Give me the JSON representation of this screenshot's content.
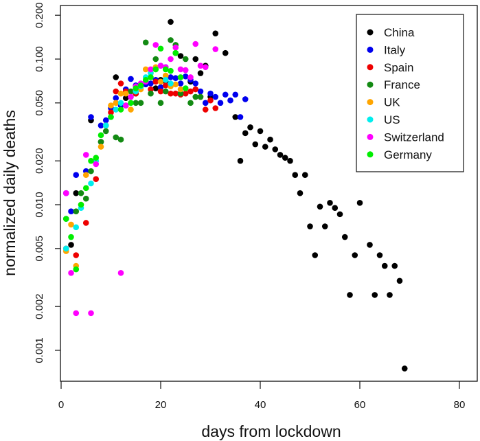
{
  "chart_data": {
    "type": "scatter",
    "title": "",
    "xlabel": "days from lockdown",
    "ylabel": "normalized daily deaths",
    "xlim": [
      -2,
      85
    ],
    "ylim": [
      0.0006,
      0.22
    ],
    "yscale": "log",
    "grid": false,
    "legend_position": "top-right",
    "x_ticks": [
      {
        "value": 0,
        "label": "0"
      },
      {
        "value": 20,
        "label": "20"
      },
      {
        "value": 40,
        "label": "40"
      },
      {
        "value": 60,
        "label": "60"
      },
      {
        "value": 80,
        "label": "80"
      }
    ],
    "y_ticks": [
      {
        "value": 0.001,
        "label": "0.001"
      },
      {
        "value": 0.002,
        "label": "0.002"
      },
      {
        "value": 0.005,
        "label": "0.005"
      },
      {
        "value": 0.01,
        "label": "0.010"
      },
      {
        "value": 0.02,
        "label": "0.020"
      },
      {
        "value": 0.05,
        "label": "0.050"
      },
      {
        "value": 0.1,
        "label": "0.100"
      },
      {
        "value": 0.2,
        "label": "0.200"
      }
    ],
    "series": [
      {
        "name": "China",
        "color": "#000000",
        "x": [
          2,
          3,
          6,
          8,
          11,
          13,
          15,
          17,
          19,
          20,
          21,
          22,
          23,
          24,
          26,
          27,
          28,
          29,
          30,
          31,
          33,
          35,
          36,
          37,
          38,
          39,
          40,
          41,
          42,
          43,
          44,
          45,
          46,
          47,
          48,
          49,
          50,
          51,
          52,
          53,
          54,
          55,
          56,
          57,
          58,
          59,
          60,
          62,
          63,
          64,
          65,
          66,
          67,
          68,
          69
        ],
        "y": [
          0.0053,
          0.012,
          0.038,
          0.027,
          0.075,
          0.054,
          0.058,
          0.069,
          0.063,
          0.072,
          0.07,
          0.18,
          0.11,
          0.105,
          0.07,
          0.1,
          0.08,
          0.09,
          0.055,
          0.15,
          0.11,
          0.04,
          0.02,
          0.031,
          0.034,
          0.026,
          0.032,
          0.025,
          0.028,
          0.024,
          0.022,
          0.021,
          0.02,
          0.016,
          0.012,
          0.016,
          0.0071,
          0.0045,
          0.0097,
          0.0071,
          0.0103,
          0.0095,
          0.0086,
          0.006,
          0.0024,
          0.0045,
          0.0103,
          0.0053,
          0.0024,
          0.0045,
          0.0038,
          0.0024,
          0.0038,
          0.003,
          0.00075
        ]
      },
      {
        "name": "Italy",
        "color": "#0000ee",
        "x": [
          1,
          2,
          3,
          5,
          6,
          8,
          9,
          10,
          11,
          12,
          13,
          14,
          15,
          16,
          17,
          18,
          19,
          20,
          21,
          22,
          23,
          24,
          25,
          26,
          27,
          28,
          29,
          30,
          31,
          32,
          33,
          34,
          35,
          36,
          37
        ],
        "y": [
          0.012,
          0.009,
          0.016,
          0.017,
          0.04,
          0.035,
          0.038,
          0.046,
          0.054,
          0.048,
          0.062,
          0.073,
          0.066,
          0.065,
          0.067,
          0.068,
          0.072,
          0.064,
          0.088,
          0.075,
          0.074,
          0.068,
          0.076,
          0.072,
          0.068,
          0.06,
          0.05,
          0.058,
          0.055,
          0.05,
          0.057,
          0.052,
          0.057,
          0.04,
          0.053
        ]
      },
      {
        "name": "Spain",
        "color": "#ee0000",
        "x": [
          1,
          3,
          5,
          7,
          9,
          10,
          11,
          12,
          13,
          15,
          16,
          17,
          18,
          19,
          20,
          21,
          22,
          23,
          24,
          25,
          26,
          27,
          28,
          29,
          30,
          31
        ],
        "y": [
          0.005,
          0.0045,
          0.0075,
          0.015,
          0.035,
          0.043,
          0.06,
          0.068,
          0.06,
          0.058,
          0.065,
          0.07,
          0.062,
          0.07,
          0.06,
          0.066,
          0.058,
          0.058,
          0.057,
          0.058,
          0.06,
          0.062,
          0.055,
          0.045,
          0.052,
          0.046
        ]
      },
      {
        "name": "France",
        "color": "#138a13",
        "x": [
          1,
          3,
          4,
          5,
          6,
          8,
          9,
          11,
          12,
          13,
          14,
          15,
          16,
          17,
          18,
          19,
          20,
          21,
          22,
          23,
          24,
          25,
          26,
          27,
          28
        ],
        "y": [
          0.008,
          0.009,
          0.012,
          0.011,
          0.017,
          0.027,
          0.032,
          0.029,
          0.028,
          0.048,
          0.06,
          0.05,
          0.05,
          0.13,
          0.058,
          0.1,
          0.05,
          0.06,
          0.135,
          0.125,
          0.058,
          0.1,
          0.05,
          0.055,
          0.055
        ]
      },
      {
        "name": "UK",
        "color": "#ffa500",
        "x": [
          1,
          2,
          3,
          4,
          5,
          7,
          8,
          9,
          10,
          11,
          12,
          13,
          14,
          15,
          16,
          17,
          18,
          19,
          20,
          21,
          22,
          23,
          24
        ],
        "y": [
          0.0048,
          0.0073,
          0.0038,
          0.01,
          0.016,
          0.02,
          0.025,
          0.035,
          0.048,
          0.05,
          0.058,
          0.058,
          0.045,
          0.06,
          0.062,
          0.085,
          0.08,
          0.088,
          0.07,
          0.077,
          0.065,
          0.067,
          0.062
        ]
      },
      {
        "name": "US",
        "color": "#00eeee",
        "x": [
          1,
          3,
          4,
          6,
          7,
          9,
          10,
          11,
          12,
          14,
          15,
          16,
          17,
          18,
          19,
          20,
          21,
          22
        ],
        "y": [
          0.005,
          0.007,
          0.0095,
          0.014,
          0.02,
          0.035,
          0.04,
          0.045,
          0.05,
          0.055,
          0.06,
          0.065,
          0.075,
          0.08,
          0.085,
          0.09,
          0.072,
          0.068
        ]
      },
      {
        "name": "Switzerland",
        "color": "#ff00ff",
        "x": [
          1,
          2,
          3,
          5,
          6,
          7,
          12,
          13,
          14,
          15,
          16,
          17,
          18,
          19,
          20,
          21,
          22,
          23,
          24,
          25,
          26,
          27,
          28,
          29,
          31
        ],
        "y": [
          0.012,
          0.0034,
          0.0018,
          0.022,
          0.0018,
          0.019,
          0.0034,
          0.048,
          0.055,
          0.065,
          0.068,
          0.07,
          0.085,
          0.125,
          0.09,
          0.088,
          0.1,
          0.12,
          0.085,
          0.084,
          0.075,
          0.127,
          0.09,
          0.088,
          0.117
        ]
      },
      {
        "name": "Germany",
        "color": "#00ee00",
        "x": [
          1,
          2,
          3,
          4,
          5,
          6,
          7,
          8,
          10,
          12,
          14,
          15,
          16,
          17,
          18,
          19,
          20,
          21,
          22,
          23,
          24,
          25
        ],
        "y": [
          0.008,
          0.006,
          0.0036,
          0.01,
          0.013,
          0.02,
          0.021,
          0.03,
          0.04,
          0.045,
          0.05,
          0.063,
          0.066,
          0.072,
          0.075,
          0.085,
          0.118,
          0.085,
          0.083,
          0.11,
          0.075,
          0.063
        ]
      }
    ]
  }
}
